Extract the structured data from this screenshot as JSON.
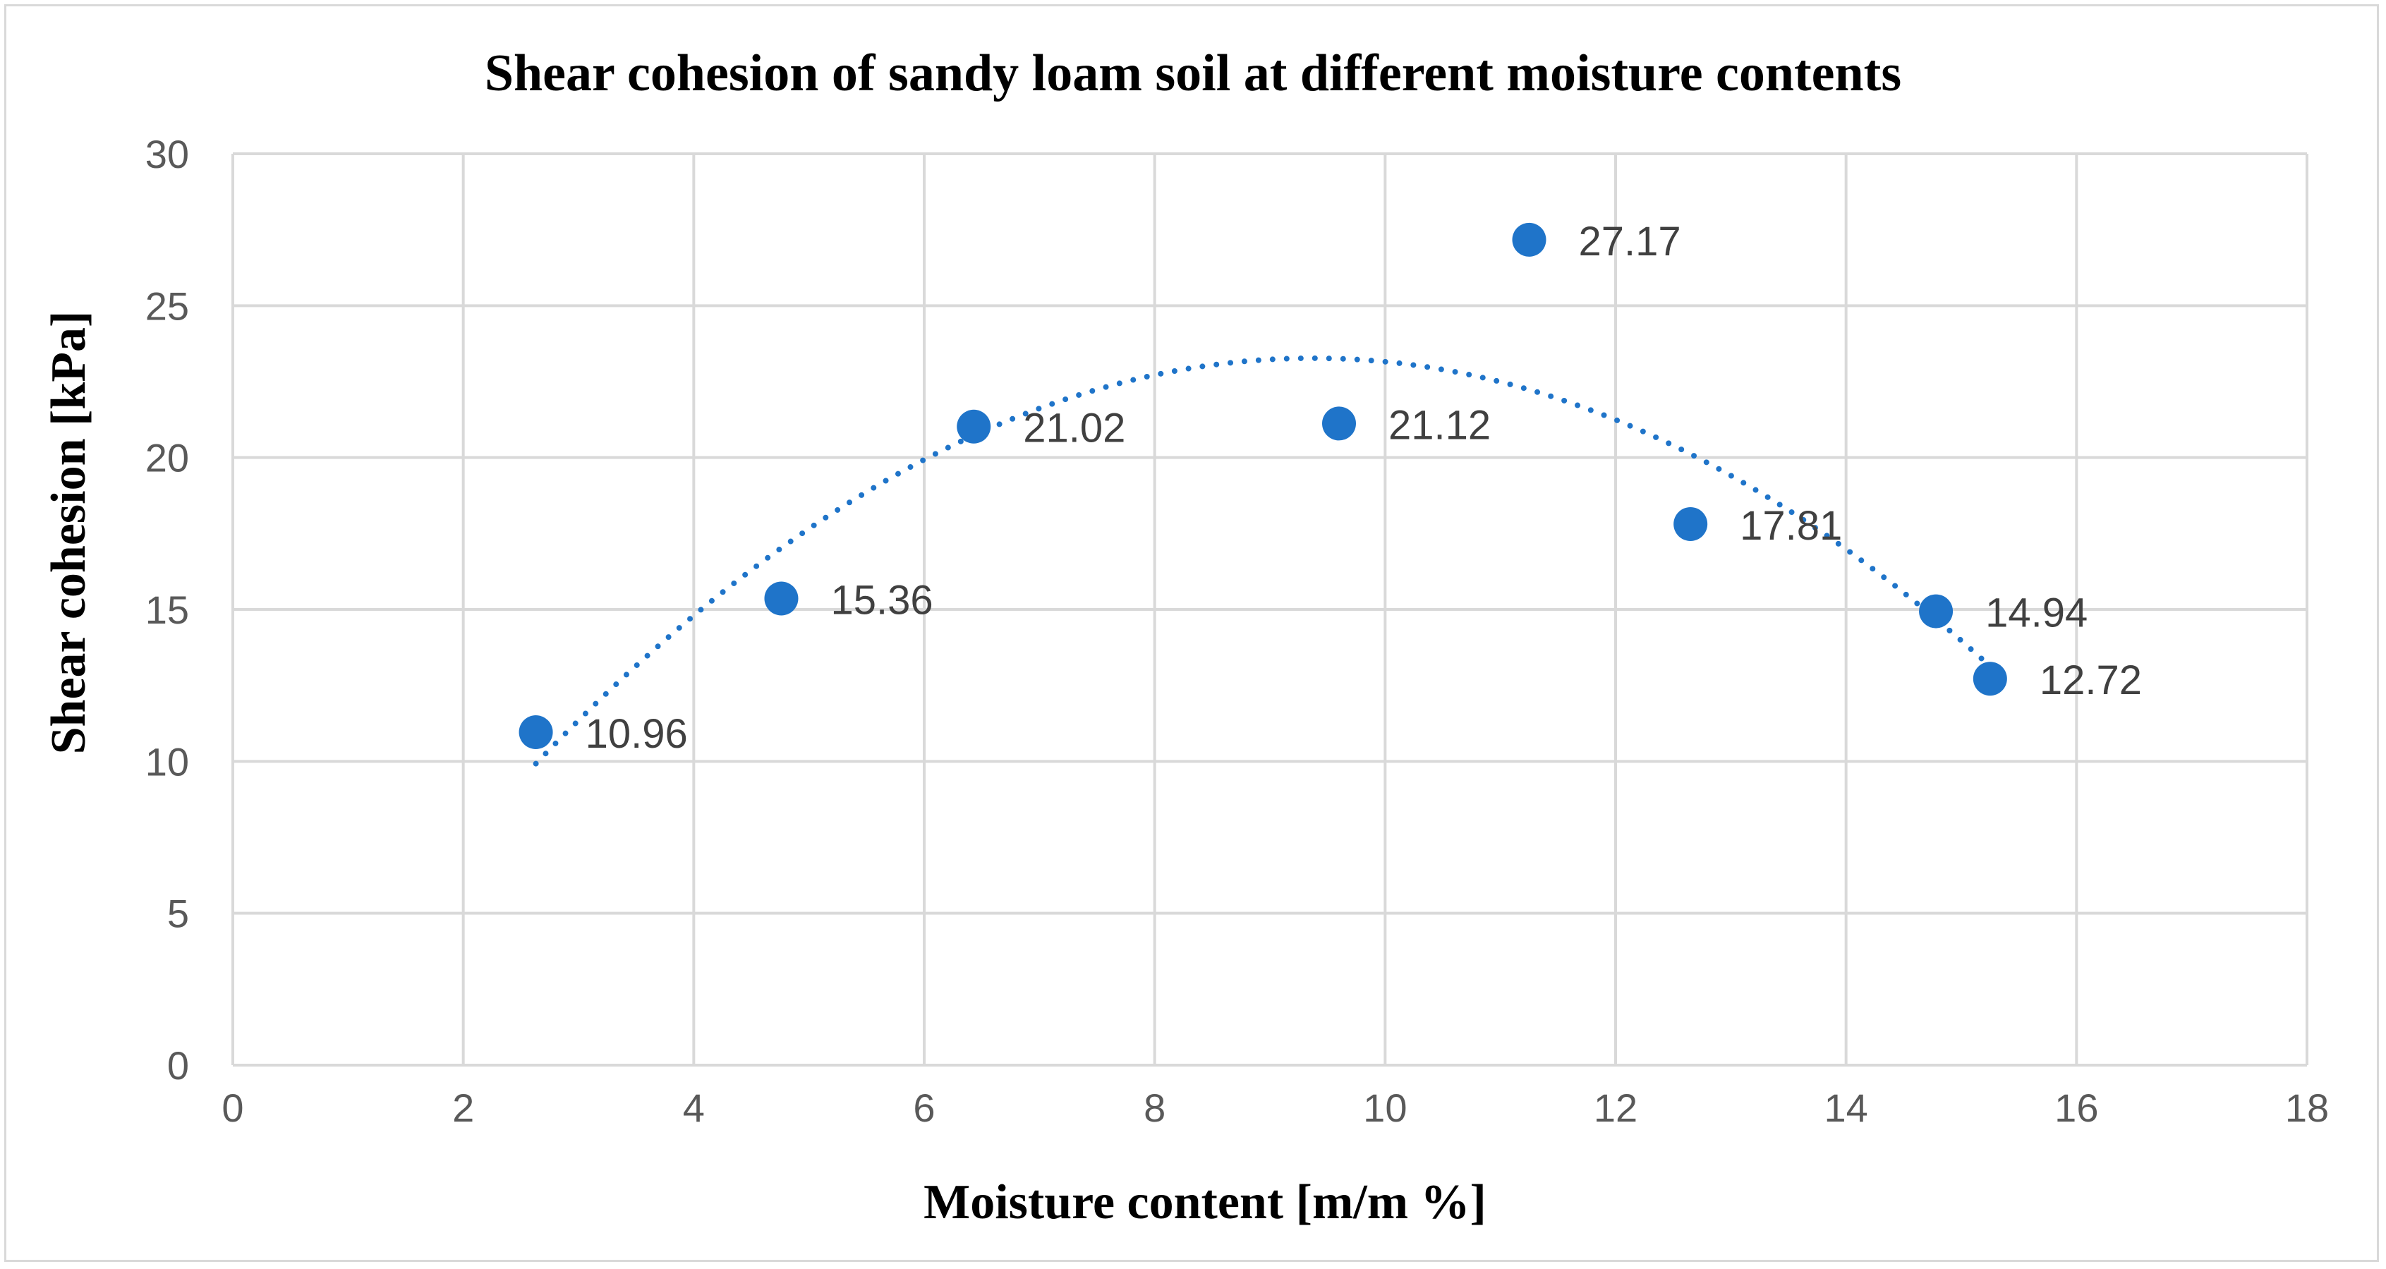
{
  "chart_data": {
    "type": "scatter",
    "title": "Shear cohesion of sandy loam soil at different moisture contents",
    "xlabel": "Moisture content [m/m %]",
    "ylabel": "Shear cohesion [kPa]",
    "xlim": [
      0,
      18
    ],
    "ylim": [
      0,
      30
    ],
    "x_ticks": [
      "0",
      "2",
      "4",
      "6",
      "8",
      "10",
      "12",
      "14",
      "16",
      "18"
    ],
    "y_ticks": [
      "0",
      "5",
      "10",
      "15",
      "20",
      "25",
      "30"
    ],
    "grid": true,
    "legend": "none",
    "series": [
      {
        "x": [
          2.63,
          4.76,
          6.43,
          9.6,
          11.25,
          12.65,
          14.78,
          15.25
        ],
        "y": [
          10.96,
          15.36,
          21.02,
          21.12,
          27.17,
          17.81,
          14.94,
          12.72
        ],
        "labels": [
          "10.96",
          "15.36",
          "21.02",
          "21.12",
          "27.17",
          "17.81",
          "14.94",
          "12.72"
        ],
        "color": "#1f74c9"
      }
    ],
    "trendline": {
      "type": "polynomial (order 2), dotted",
      "x_range": [
        2.63,
        15.25
      ],
      "color": "#1f74c9"
    }
  }
}
